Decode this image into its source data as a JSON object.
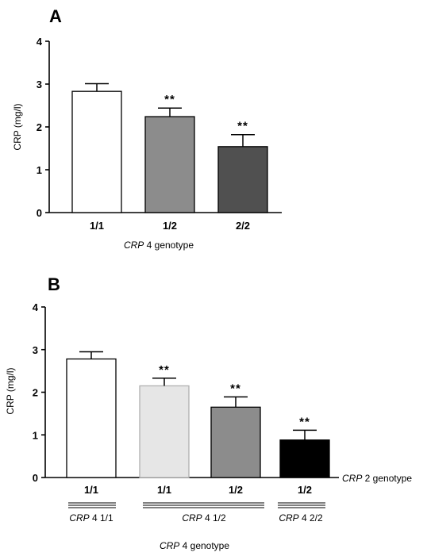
{
  "chart_data": [
    {
      "type": "bar",
      "panel_label": "A",
      "categories": [
        "1/1",
        "1/2",
        "2/2"
      ],
      "values": [
        2.83,
        2.24,
        1.54
      ],
      "errors": [
        0.18,
        0.2,
        0.28
      ],
      "significance": [
        "",
        "**",
        "**"
      ],
      "bar_colors": [
        "#ffffff",
        "#8c8c8c",
        "#505050"
      ],
      "ylabel": "CRP (mg/l)",
      "xlabel_italic": "CRP",
      "xlabel_rest": " 4 genotype",
      "ylim": [
        0,
        4
      ],
      "yticks": [
        "0",
        "1",
        "2",
        "3",
        "4"
      ]
    },
    {
      "type": "bar",
      "panel_label": "B",
      "categories": [
        "1/1",
        "1/1",
        "1/2",
        "1/2"
      ],
      "values": [
        2.78,
        2.15,
        1.65,
        0.88
      ],
      "errors": [
        0.17,
        0.18,
        0.24,
        0.23
      ],
      "significance": [
        "",
        "**",
        "**",
        "**"
      ],
      "bar_colors": [
        "#ffffff",
        "#e6e6e6",
        "#8c8c8c",
        "#000000"
      ],
      "ylabel": "CRP (mg/l)",
      "category_axis_italic": "CRP",
      "category_axis_rest": " 2 genotype",
      "groups": [
        {
          "italic": "CRP",
          "rest": " 4 1/1"
        },
        {
          "italic": "CRP",
          "rest": " 4 1/2"
        },
        {
          "italic": "CRP",
          "rest": " 4 2/2"
        }
      ],
      "xlabel_italic": "CRP",
      "xlabel_rest": " 4 genotype",
      "ylim": [
        0,
        4
      ],
      "yticks": [
        "0",
        "1",
        "2",
        "3",
        "4"
      ]
    }
  ]
}
